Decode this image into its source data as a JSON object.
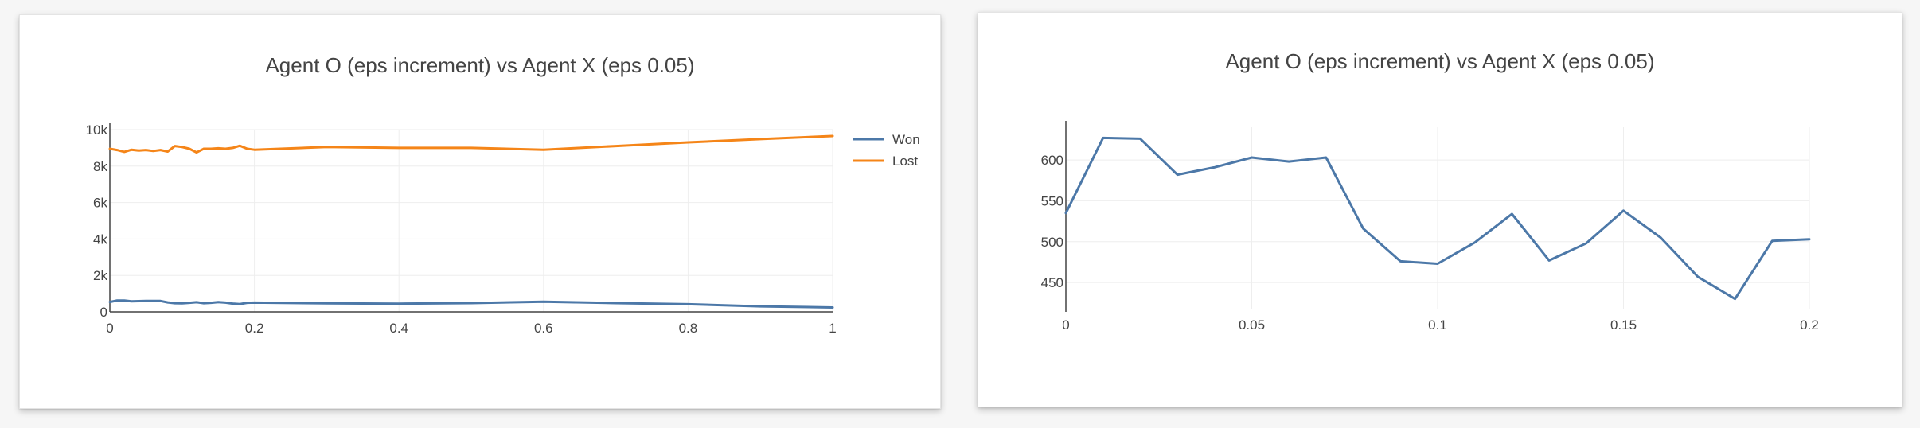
{
  "chart_data": [
    {
      "type": "line",
      "title": "Agent O (eps increment) vs Agent X (eps 0.05)",
      "xlabel": "",
      "ylabel": "",
      "xlim": [
        0,
        1
      ],
      "ylim": [
        0,
        10000
      ],
      "xticks": [
        0,
        0.2,
        0.4,
        0.6,
        0.8,
        1
      ],
      "xtick_labels": [
        "0",
        "0.2",
        "0.4",
        "0.6",
        "0.8",
        "1"
      ],
      "yticks": [
        0,
        2000,
        4000,
        6000,
        8000,
        10000
      ],
      "ytick_labels": [
        "0",
        "2k",
        "4k",
        "6k",
        "8k",
        "10k"
      ],
      "grid": true,
      "legend_position": "top-right",
      "series": [
        {
          "name": "Won",
          "color": "#4c78a8",
          "x": [
            0,
            0.01,
            0.02,
            0.03,
            0.04,
            0.05,
            0.06,
            0.07,
            0.08,
            0.09,
            0.1,
            0.11,
            0.12,
            0.13,
            0.14,
            0.15,
            0.16,
            0.17,
            0.18,
            0.19,
            0.2,
            0.3,
            0.4,
            0.5,
            0.6,
            0.7,
            0.8,
            0.9,
            1
          ],
          "y": [
            540,
            625,
            620,
            580,
            590,
            600,
            598,
            600,
            520,
            475,
            470,
            500,
            530,
            475,
            500,
            535,
            505,
            455,
            430,
            500,
            505,
            470,
            450,
            480,
            560,
            480,
            420,
            300,
            240
          ]
        },
        {
          "name": "Lost",
          "color": "#f58518",
          "x": [
            0,
            0.01,
            0.02,
            0.03,
            0.04,
            0.05,
            0.06,
            0.07,
            0.08,
            0.09,
            0.1,
            0.11,
            0.12,
            0.13,
            0.14,
            0.15,
            0.16,
            0.17,
            0.18,
            0.19,
            0.2,
            0.3,
            0.4,
            0.5,
            0.6,
            0.7,
            0.8,
            0.9,
            1
          ],
          "y": [
            8950,
            8880,
            8780,
            8900,
            8850,
            8880,
            8830,
            8880,
            8800,
            9100,
            9050,
            8950,
            8750,
            8950,
            8950,
            8980,
            8950,
            9000,
            9120,
            8950,
            8900,
            9050,
            9000,
            9000,
            8900,
            9100,
            9300,
            9480,
            9650
          ]
        }
      ]
    },
    {
      "type": "line",
      "title": "Agent O (eps increment) vs Agent X (eps 0.05)",
      "xlabel": "",
      "ylabel": "",
      "xlim": [
        0,
        0.2
      ],
      "ylim": [
        418,
        640
      ],
      "xticks": [
        0,
        0.05,
        0.1,
        0.15,
        0.2
      ],
      "xtick_labels": [
        "0",
        "0.05",
        "0.1",
        "0.15",
        "0.2"
      ],
      "yticks": [
        450,
        500,
        550,
        600
      ],
      "ytick_labels": [
        "450",
        "500",
        "550",
        "600"
      ],
      "grid": true,
      "legend_position": "none",
      "series": [
        {
          "name": "",
          "color": "#4c78a8",
          "x": [
            0,
            0.01,
            0.02,
            0.03,
            0.04,
            0.05,
            0.06,
            0.07,
            0.08,
            0.09,
            0.1,
            0.11,
            0.12,
            0.13,
            0.14,
            0.15,
            0.16,
            0.17,
            0.18,
            0.19,
            0.2
          ],
          "y": [
            535,
            627,
            626,
            582,
            591,
            603,
            598,
            603,
            516,
            476,
            473,
            499,
            534,
            477,
            498,
            538,
            505,
            457,
            430,
            501,
            503
          ]
        }
      ]
    }
  ]
}
